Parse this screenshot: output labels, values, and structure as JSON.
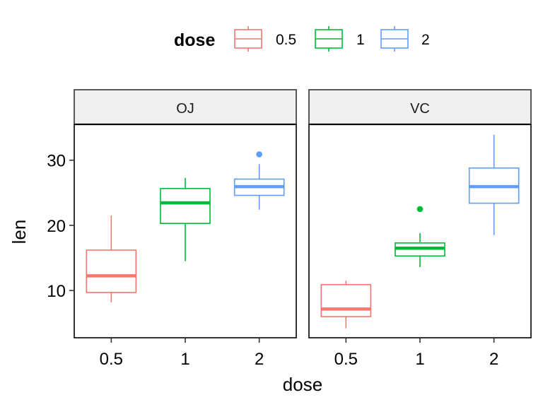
{
  "chart_data": {
    "type": "boxplot",
    "xlabel": "dose",
    "ylabel": "len",
    "ylim": [
      2.75,
      35.5
    ],
    "yticks": [
      10,
      20,
      30
    ],
    "categories": [
      "0.5",
      "1",
      "2"
    ],
    "legend": {
      "title": "dose",
      "position": "top",
      "entries": [
        {
          "label": "0.5",
          "color": "#F8766D"
        },
        {
          "label": "1",
          "color": "#00BA38"
        },
        {
          "label": "2",
          "color": "#619CFF"
        }
      ]
    },
    "facets": [
      {
        "label": "OJ",
        "boxes": [
          {
            "dose": "0.5",
            "min": 8.2,
            "q1": 9.7,
            "median": 12.25,
            "q3": 16.2,
            "max": 21.5,
            "outliers": []
          },
          {
            "dose": "1",
            "min": 14.5,
            "q1": 20.3,
            "median": 23.45,
            "q3": 25.65,
            "max": 27.3,
            "outliers": []
          },
          {
            "dose": "2",
            "min": 22.4,
            "q1": 24.6,
            "median": 25.95,
            "q3": 27.1,
            "max": 29.4,
            "outliers": [
              30.9
            ]
          }
        ]
      },
      {
        "label": "VC",
        "boxes": [
          {
            "dose": "0.5",
            "min": 4.2,
            "q1": 6.0,
            "median": 7.15,
            "q3": 10.9,
            "max": 11.5,
            "outliers": []
          },
          {
            "dose": "1",
            "min": 13.6,
            "q1": 15.3,
            "median": 16.5,
            "q3": 17.3,
            "max": 18.8,
            "outliers": [
              22.5
            ]
          },
          {
            "dose": "2",
            "min": 18.5,
            "q1": 23.4,
            "median": 25.95,
            "q3": 28.8,
            "max": 33.9,
            "outliers": []
          }
        ]
      }
    ],
    "grid": false
  }
}
